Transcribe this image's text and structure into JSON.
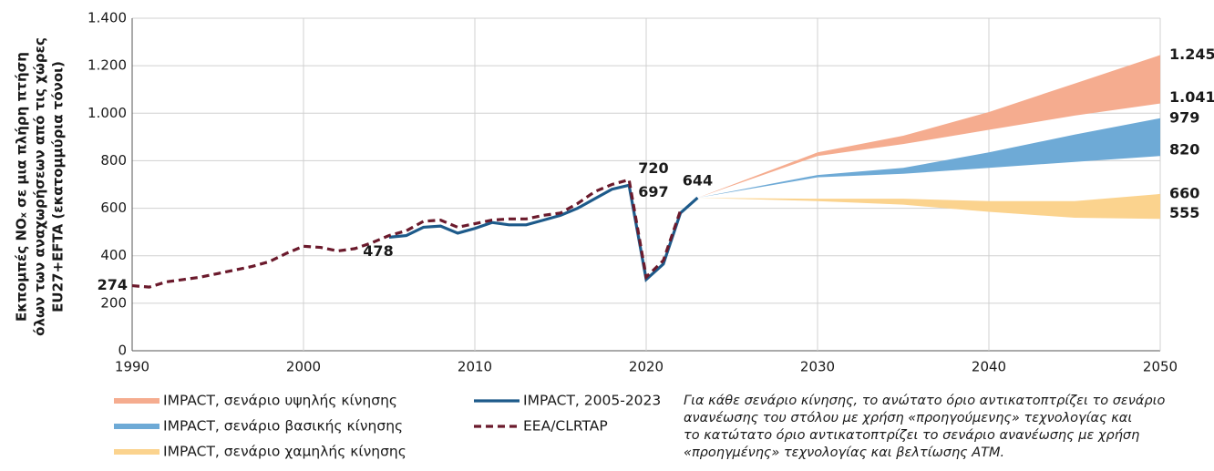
{
  "chart_data": {
    "type": "line",
    "ylabel": [
      "Εκπομπές NOₓ σε μια πλήρη πτήση",
      "όλων των αναχωρήσεων από τις χώρες",
      "EU27+EFTA (εκατομμύρια τόνοι)"
    ],
    "xlim": [
      1990,
      2050
    ],
    "xticks": [
      1990,
      2000,
      2010,
      2020,
      2030,
      2040,
      2050
    ],
    "ylim": [
      0,
      1400
    ],
    "yticks": [
      0,
      200,
      400,
      600,
      800,
      {
        "value": 1000,
        "label": "1.000"
      },
      {
        "value": 1200,
        "label": "1.200"
      },
      {
        "value": 1400,
        "label": "1.400"
      }
    ],
    "grid": true,
    "series": [
      {
        "name": "IMPACT, σενάριο υψηλής κίνησης",
        "type": "band",
        "color": "#f5ac8f",
        "label_color": "#f08f6e",
        "x": [
          2023,
          2030,
          2035,
          2040,
          2045,
          2050
        ],
        "values": [
          644,
          835,
          905,
          1005,
          1125,
          1245
        ],
        "lower": [
          644,
          820,
          870,
          930,
          990,
          1041
        ],
        "value_labels": [
          null,
          null,
          null,
          null,
          null,
          "1.245"
        ],
        "lower_labels": [
          null,
          null,
          null,
          null,
          null,
          "1.041"
        ]
      },
      {
        "name": "IMPACT, σενάριο βασικής κίνησης",
        "type": "band",
        "color": "#6eaad6",
        "label_color": "#1b7fc0",
        "x": [
          2023,
          2030,
          2035,
          2040,
          2045,
          2050
        ],
        "values": [
          644,
          740,
          770,
          835,
          910,
          979
        ],
        "lower": [
          644,
          730,
          745,
          770,
          795,
          820
        ],
        "value_labels": [
          null,
          null,
          null,
          null,
          null,
          "979"
        ],
        "lower_labels": [
          null,
          null,
          null,
          null,
          null,
          "820"
        ]
      },
      {
        "name": "IMPACT, σενάριο χαμηλής κίνησης",
        "type": "band",
        "color": "#fbd38e",
        "label_color": "#c9a063",
        "x": [
          2023,
          2030,
          2035,
          2040,
          2045,
          2050
        ],
        "values": [
          644,
          640,
          640,
          630,
          630,
          660
        ],
        "lower": [
          644,
          630,
          615,
          585,
          560,
          555
        ],
        "value_labels": [
          null,
          null,
          null,
          null,
          null,
          "660"
        ],
        "lower_labels": [
          null,
          null,
          null,
          null,
          null,
          "555"
        ]
      },
      {
        "name": "IMPACT, 2005-2023",
        "type": "line",
        "color": "#1d5a8a",
        "x": [
          2005,
          2006,
          2007,
          2008,
          2009,
          2010,
          2011,
          2012,
          2013,
          2014,
          2015,
          2016,
          2017,
          2018,
          2019,
          2020,
          2021,
          2022,
          2023
        ],
        "values": [
          478,
          485,
          520,
          525,
          495,
          515,
          540,
          530,
          530,
          550,
          570,
          600,
          640,
          680,
          697,
          300,
          365,
          580,
          644
        ],
        "value_labels": [
          "478",
          null,
          null,
          null,
          null,
          null,
          null,
          null,
          null,
          null,
          null,
          null,
          null,
          null,
          "697",
          null,
          null,
          null,
          "644"
        ]
      },
      {
        "name": "EEA/CLRTAP",
        "type": "dashed",
        "color": "#6b1a2c",
        "x": [
          1990,
          1991,
          1992,
          1993,
          1994,
          1995,
          1996,
          1997,
          1998,
          1999,
          2000,
          2001,
          2002,
          2003,
          2004,
          2005,
          2006,
          2007,
          2008,
          2009,
          2010,
          2011,
          2012,
          2013,
          2014,
          2015,
          2016,
          2017,
          2018,
          2019,
          2020,
          2021,
          2022
        ],
        "values": [
          274,
          268,
          290,
          300,
          310,
          325,
          340,
          355,
          375,
          410,
          440,
          435,
          420,
          430,
          455,
          485,
          505,
          545,
          550,
          520,
          535,
          550,
          555,
          555,
          570,
          580,
          620,
          670,
          700,
          720,
          310,
          380,
          590
        ],
        "value_labels": [
          "274",
          null,
          null,
          null,
          null,
          null,
          null,
          null,
          null,
          null,
          null,
          null,
          null,
          null,
          null,
          null,
          null,
          null,
          null,
          null,
          null,
          null,
          null,
          null,
          null,
          null,
          null,
          null,
          null,
          "720",
          null,
          null,
          null
        ]
      }
    ],
    "note": [
      "Για κάθε σενάριο κίνησης, το ανώτατο όριο αντικατοπτρίζει το σενάριο",
      "ανανέωσης του στόλου με χρήση «προηγούμενης» τεχνολογίας και",
      "το κατώτατο όριο αντικατοπτρίζει το σενάριο ανανέωσης με χρήση",
      "«προηγμένης» τεχνολογίας και βελτίωσης ΑΤΜ."
    ]
  }
}
